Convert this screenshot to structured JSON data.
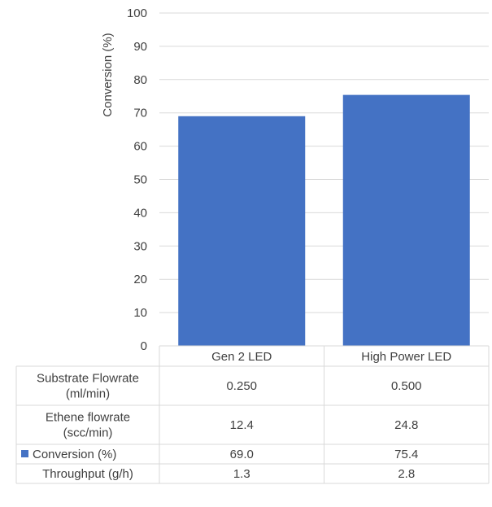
{
  "chart_data": {
    "type": "bar",
    "categories": [
      "Gen 2 LED",
      "High Power LED"
    ],
    "series": [
      {
        "name": "Conversion (%)",
        "values": [
          69.0,
          75.4
        ],
        "color": "#4472c4"
      }
    ],
    "ylabel": "Conversion (%)",
    "ylim": [
      0,
      100
    ],
    "yticks": [
      0,
      10,
      20,
      30,
      40,
      50,
      60,
      70,
      80,
      90,
      100
    ],
    "grid": true,
    "legend": "in-table",
    "data_table": {
      "rows": [
        {
          "label_lines": [
            "Substrate Flowrate",
            "(ml/min)"
          ],
          "values": [
            "0.250",
            "0.500"
          ]
        },
        {
          "label_lines": [
            "Ethene flowrate",
            "(scc/min)"
          ],
          "values": [
            "12.4",
            "24.8"
          ]
        },
        {
          "label_lines": [
            "Conversion (%)"
          ],
          "values": [
            "69.0",
            "75.4"
          ],
          "legend_key": true
        },
        {
          "label_lines": [
            "Throughput (g/h)"
          ],
          "values": [
            "1.3",
            "2.8"
          ]
        }
      ]
    }
  }
}
